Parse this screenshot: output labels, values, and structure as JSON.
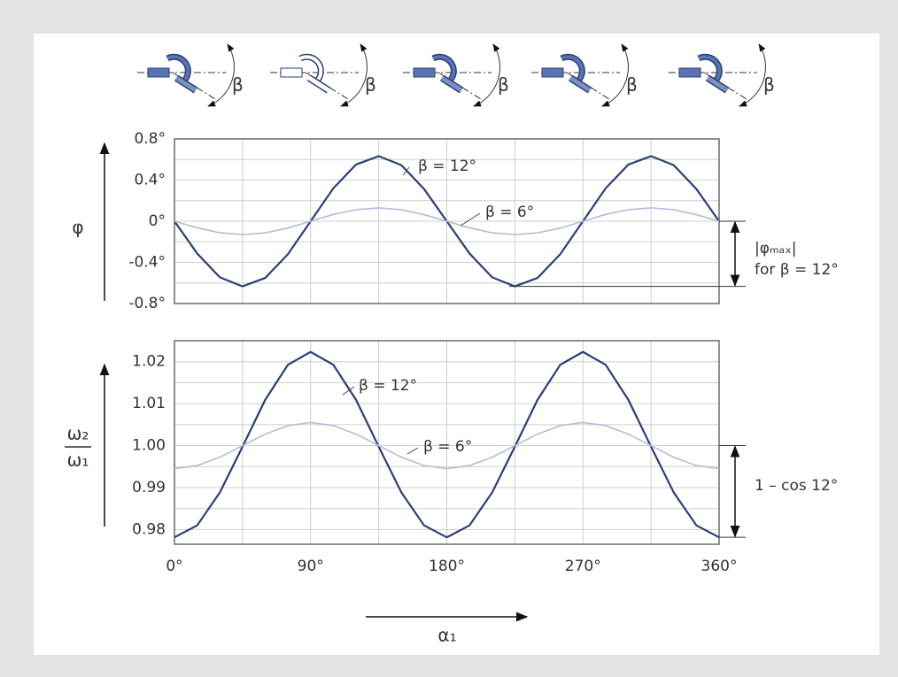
{
  "illustrations": {
    "labels": [
      "β",
      "β",
      "β",
      "β",
      "β"
    ]
  },
  "chart_data": [
    {
      "type": "line",
      "ylabel": "φ",
      "x": [
        0,
        15,
        30,
        45,
        60,
        75,
        90,
        105,
        120,
        135,
        150,
        165,
        180,
        195,
        210,
        225,
        240,
        255,
        270,
        285,
        300,
        315,
        330,
        345,
        360
      ],
      "xlim": [
        0,
        360
      ],
      "minor_xticks": [
        45,
        90,
        135,
        180,
        225,
        270,
        315
      ],
      "ylim": [
        -0.8,
        0.8
      ],
      "yticks": [
        {
          "value": 0.8,
          "label": "0.8°"
        },
        {
          "value": 0.4,
          "label": "0.4°"
        },
        {
          "value": 0,
          "label": "0°"
        },
        {
          "value": -0.4,
          "label": "-0.4°"
        },
        {
          "value": -0.8,
          "label": "-0.8°"
        }
      ],
      "minor_yticks": [
        0.6,
        0.2,
        -0.2,
        -0.6
      ],
      "grid": true,
      "series": [
        {
          "name": "β = 12°",
          "color": "#2b3f73",
          "values": [
            0,
            -0.313,
            -0.545,
            -0.633,
            -0.551,
            -0.32,
            0,
            0.32,
            0.551,
            0.633,
            0.545,
            0.313,
            0,
            -0.313,
            -0.545,
            -0.633,
            -0.551,
            -0.32,
            0,
            0.32,
            0.551,
            0.633,
            0.545,
            0.313,
            0
          ]
        },
        {
          "name": "β = 6°",
          "color": "#b3bdd9",
          "values": [
            0,
            -0.064,
            -0.112,
            -0.13,
            -0.113,
            -0.066,
            0,
            0.066,
            0.113,
            0.13,
            0.112,
            0.064,
            0,
            -0.064,
            -0.112,
            -0.13,
            -0.113,
            -0.066,
            0,
            0.066,
            0.113,
            0.13,
            0.112,
            0.064,
            0
          ]
        }
      ],
      "annotation": [
        "|φₘₐₓ|",
        "for β = 12°"
      ]
    },
    {
      "type": "line",
      "ylabel": [
        "ω₂",
        "ω₁"
      ],
      "xlabel": "α₁",
      "x": [
        0,
        15,
        30,
        45,
        60,
        75,
        90,
        105,
        120,
        135,
        150,
        165,
        180,
        195,
        210,
        225,
        240,
        255,
        270,
        285,
        300,
        315,
        330,
        345,
        360
      ],
      "xlim": [
        0,
        360
      ],
      "xticks": [
        {
          "value": 0,
          "label": "0°"
        },
        {
          "value": 90,
          "label": "90°"
        },
        {
          "value": 180,
          "label": "180°"
        },
        {
          "value": 270,
          "label": "270°"
        },
        {
          "value": 360,
          "label": "360°"
        }
      ],
      "minor_xticks": [
        45,
        135,
        225,
        315
      ],
      "ylim": [
        0.9765,
        1.025
      ],
      "yticks": [
        1.02,
        1.01,
        {
          "value": 1,
          "label": "1.00"
        },
        0.99,
        0.98
      ],
      "minor_yticks": [
        1.015,
        1.005,
        0.995,
        0.985
      ],
      "grid": true,
      "series": [
        {
          "name": "β = 12°",
          "color": "#2b3f73",
          "values": [
            0.97815,
            0.98099,
            0.98884,
            0.99976,
            1.01093,
            1.01927,
            1.02234,
            1.01927,
            1.01093,
            0.99976,
            0.98884,
            0.98099,
            0.97815,
            0.98099,
            0.98884,
            0.99976,
            1.01093,
            1.01927,
            1.02234,
            1.01927,
            1.01093,
            0.99976,
            0.98884,
            0.98099,
            0.97815
          ]
        },
        {
          "name": "β = 6°",
          "color": "#b3bdd9",
          "values": [
            0.99452,
            0.99525,
            0.99724,
            1,
            1.00274,
            1.00477,
            1.00551,
            1.00477,
            1.00274,
            1,
            0.99724,
            0.99525,
            0.99452,
            0.99525,
            0.99724,
            1,
            1.00274,
            1.00477,
            1.00551,
            1.00477,
            1.00274,
            1,
            0.99724,
            0.99525,
            0.99452
          ]
        }
      ],
      "annotation": "1 – cos 12°"
    }
  ]
}
